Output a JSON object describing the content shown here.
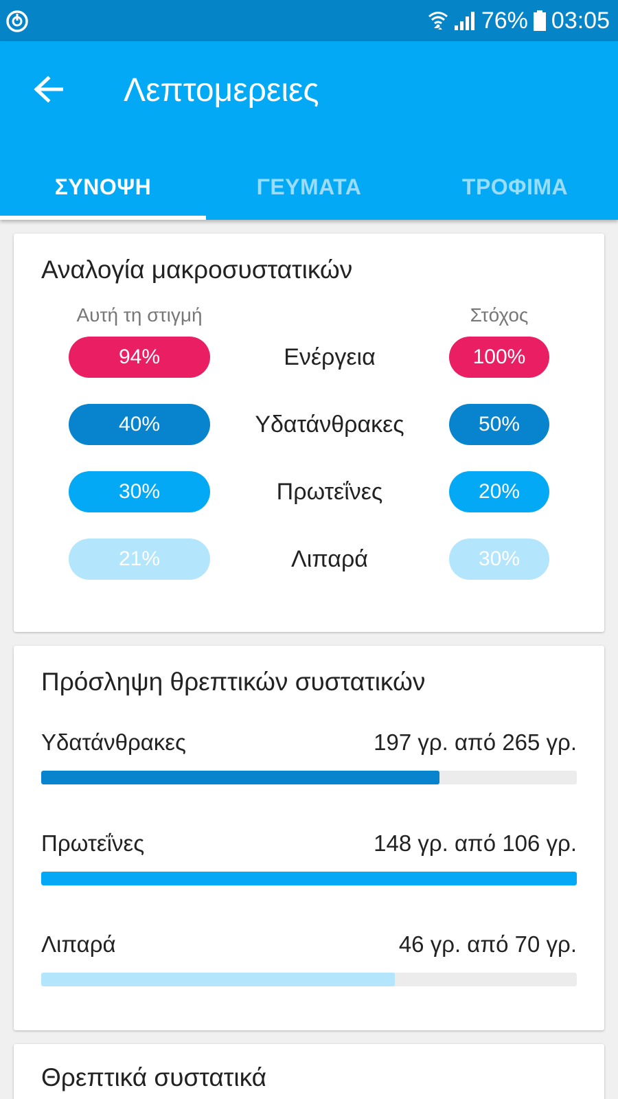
{
  "status_bar": {
    "battery": "76%",
    "time": "03:05"
  },
  "app_bar": {
    "title": "Λεπτομερειες"
  },
  "tabs": [
    {
      "label": "ΣΥΝΟΨΗ",
      "active": true
    },
    {
      "label": "ΓΕΥΜΑΤΑ",
      "active": false
    },
    {
      "label": "ΤΡΟΦΙΜΑ",
      "active": false
    }
  ],
  "macro_ratio": {
    "title": "Αναλογία μακροσυστατικών",
    "current_header": "Αυτή τη στιγμή",
    "goal_header": "Στόχος",
    "rows": [
      {
        "label": "Ενέργεια",
        "current": "94%",
        "goal": "100%",
        "color": "#e91e63",
        "text_color": "#ffffff"
      },
      {
        "label": "Υδατάνθρακες",
        "current": "40%",
        "goal": "50%",
        "color": "#0784cd",
        "text_color": "#ffffff"
      },
      {
        "label": "Πρωτεΐνες",
        "current": "30%",
        "goal": "20%",
        "color": "#03a9f4",
        "text_color": "#ffffff"
      },
      {
        "label": "Λιπαρά",
        "current": "21%",
        "goal": "30%",
        "color": "#b3e5fc",
        "text_color": "#ffffff"
      }
    ]
  },
  "nutrient_intake": {
    "title": "Πρόσληψη θρεπτικών συστατικών",
    "items": [
      {
        "name": "Υδατάνθρακες",
        "value": "197 γρ. από 265 γρ.",
        "fraction": 0.743,
        "color": "#0784cd"
      },
      {
        "name": "Πρωτεΐνες",
        "value": "148 γρ. από 106 γρ.",
        "fraction": 1.0,
        "color": "#03a9f4"
      },
      {
        "name": "Λιπαρά",
        "value": "46 γρ. από 70 γρ.",
        "fraction": 0.66,
        "color": "#b3e5fc"
      }
    ]
  },
  "nutrients": {
    "title": "Θρεπτικά συστατικά"
  }
}
